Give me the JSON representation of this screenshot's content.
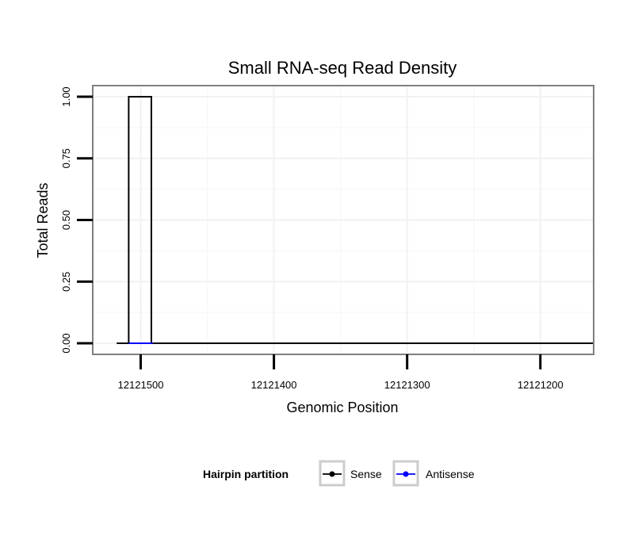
{
  "chart_data": {
    "type": "line",
    "title": "Small RNA-seq Read Density",
    "xlabel": "Genomic Position",
    "ylabel": "Total Reads",
    "x_reversed": true,
    "xlim": [
      12121536,
      12121160
    ],
    "ylim": [
      -0.045,
      1.045
    ],
    "x_ticks": [
      12121500,
      12121400,
      12121300,
      12121200
    ],
    "x_tick_labels": [
      "12121500",
      "12121400",
      "12121300",
      "12121200"
    ],
    "y_ticks": [
      0,
      0.25,
      0.5,
      0.75,
      1
    ],
    "y_tick_labels": [
      "0.00",
      "0.25",
      "0.50",
      "0.75",
      "1.00"
    ],
    "grid": true,
    "legend": {
      "title": "Hairpin partition",
      "position": "bottom"
    },
    "series": [
      {
        "name": "Sense",
        "color": "#000000",
        "x": [
          12121518,
          12121509,
          12121509,
          12121492,
          12121492,
          12121160
        ],
        "y": [
          0,
          0,
          1,
          1,
          0,
          0
        ]
      },
      {
        "name": "Antisense",
        "color": "#0000ff",
        "x": [
          12121509,
          12121491
        ],
        "y": [
          0,
          0
        ]
      }
    ]
  }
}
